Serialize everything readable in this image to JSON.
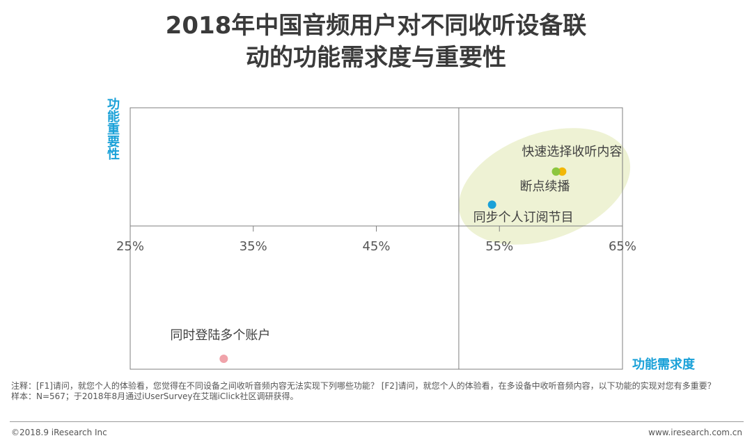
{
  "title": "2018年中国音频用户对不同收听设备联\n动的功能需求度与重要性",
  "ylabel": "功能重要性",
  "xlabel": "功能需求度",
  "chart_data": {
    "type": "scatter",
    "title": "2018年中国音频用户对不同收听设备联动的功能需求度与重要性",
    "xlabel": "功能需求度",
    "ylabel": "功能重要性",
    "x_ticks": [
      "25%",
      "35%",
      "45%",
      "55%",
      "65%"
    ],
    "xlim": [
      25,
      65
    ],
    "x_cross": 51.7,
    "grid": false,
    "points": [
      {
        "label": "快速选择收听内容",
        "x": 60.1,
        "y": 0.46,
        "color": "#f2b705"
      },
      {
        "label": "断点续播",
        "x": 59.6,
        "y": 0.46,
        "color": "#8cc63f"
      },
      {
        "label": "同步个人订阅节目",
        "x": 54.4,
        "y": 0.18,
        "color": "#1aa1d8"
      },
      {
        "label": "同时登陆多个账户",
        "x": 32.6,
        "y": -1.0,
        "color": "#f0a3aa"
      }
    ]
  },
  "notes": {
    "line1": "注释：[F1]请问，就您个人的体验看，您觉得在不同设备之间收听音频内容无法实现下列哪些功能？ [F2]请问，就您个人的体验看，在多设备中收听音频内容，以下功能的实现对您有多重要？",
    "line2": "样本：N=567；于2018年8月通过iUserSurvey在艾瑞iClick社区调研获得。"
  },
  "footer": {
    "left": "©2018.9 iResearch Inc",
    "right": "www.iresearch.com.cn"
  }
}
